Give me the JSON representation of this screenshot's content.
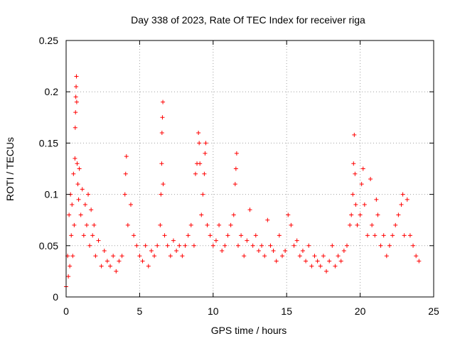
{
  "chart_data": {
    "type": "scatter",
    "title": "Day 338 of 2023, Rate Of TEC Index for receiver riga",
    "xlabel": "GPS time / hours",
    "ylabel": "ROTI / TECUs",
    "xlim": [
      0,
      25
    ],
    "ylim": [
      0,
      0.25
    ],
    "xticks": [
      0,
      5,
      10,
      15,
      20,
      25
    ],
    "yticks": [
      0,
      0.05,
      0.1,
      0.15,
      0.2,
      0.25
    ],
    "xtick_labels": [
      "0",
      "5",
      "10",
      "15",
      "20",
      "25"
    ],
    "ytick_labels": [
      "0",
      "0.05",
      "0.1",
      "0.15",
      "0.2",
      "0.25"
    ],
    "grid": true,
    "marker": "plus",
    "color": "#ff0000",
    "series": [
      {
        "points": [
          [
            0.0,
            0.01
          ],
          [
            0.1,
            0.04
          ],
          [
            0.15,
            0.02
          ],
          [
            0.2,
            0.08
          ],
          [
            0.25,
            0.03
          ],
          [
            0.3,
            0.1
          ],
          [
            0.35,
            0.06
          ],
          [
            0.4,
            0.09
          ],
          [
            0.45,
            0.04
          ],
          [
            0.5,
            0.12
          ],
          [
            0.55,
            0.07
          ],
          [
            0.6,
            0.135
          ],
          [
            0.62,
            0.165
          ],
          [
            0.64,
            0.18
          ],
          [
            0.66,
            0.195
          ],
          [
            0.68,
            0.205
          ],
          [
            0.7,
            0.215
          ],
          [
            0.72,
            0.19
          ],
          [
            0.75,
            0.13
          ],
          [
            0.8,
            0.11
          ],
          [
            0.85,
            0.095
          ],
          [
            0.9,
            0.125
          ],
          [
            1.0,
            0.08
          ],
          [
            1.1,
            0.105
          ],
          [
            1.2,
            0.06
          ],
          [
            1.3,
            0.09
          ],
          [
            1.4,
            0.07
          ],
          [
            1.5,
            0.1
          ],
          [
            1.6,
            0.05
          ],
          [
            1.7,
            0.085
          ],
          [
            1.8,
            0.06
          ],
          [
            1.9,
            0.07
          ],
          [
            2.0,
            0.04
          ],
          [
            2.2,
            0.055
          ],
          [
            2.4,
            0.03
          ],
          [
            2.6,
            0.045
          ],
          [
            2.8,
            0.035
          ],
          [
            3.0,
            0.03
          ],
          [
            3.2,
            0.04
          ],
          [
            3.4,
            0.025
          ],
          [
            3.6,
            0.035
          ],
          [
            3.8,
            0.04
          ],
          [
            4.0,
            0.1
          ],
          [
            4.05,
            0.12
          ],
          [
            4.1,
            0.137
          ],
          [
            4.2,
            0.07
          ],
          [
            4.4,
            0.09
          ],
          [
            4.6,
            0.06
          ],
          [
            4.8,
            0.05
          ],
          [
            5.0,
            0.04
          ],
          [
            5.2,
            0.035
          ],
          [
            5.4,
            0.05
          ],
          [
            5.6,
            0.03
          ],
          [
            5.8,
            0.045
          ],
          [
            6.0,
            0.04
          ],
          [
            6.2,
            0.05
          ],
          [
            6.4,
            0.07
          ],
          [
            6.45,
            0.1
          ],
          [
            6.5,
            0.13
          ],
          [
            6.52,
            0.16
          ],
          [
            6.55,
            0.175
          ],
          [
            6.58,
            0.19
          ],
          [
            6.6,
            0.11
          ],
          [
            6.7,
            0.06
          ],
          [
            6.9,
            0.05
          ],
          [
            7.1,
            0.04
          ],
          [
            7.3,
            0.055
          ],
          [
            7.5,
            0.045
          ],
          [
            7.7,
            0.05
          ],
          [
            7.9,
            0.04
          ],
          [
            8.1,
            0.05
          ],
          [
            8.3,
            0.06
          ],
          [
            8.5,
            0.07
          ],
          [
            8.7,
            0.05
          ],
          [
            8.8,
            0.12
          ],
          [
            8.9,
            0.13
          ],
          [
            9.0,
            0.16
          ],
          [
            9.05,
            0.15
          ],
          [
            9.1,
            0.13
          ],
          [
            9.2,
            0.08
          ],
          [
            9.3,
            0.1
          ],
          [
            9.4,
            0.12
          ],
          [
            9.45,
            0.14
          ],
          [
            9.5,
            0.15
          ],
          [
            9.6,
            0.07
          ],
          [
            9.8,
            0.06
          ],
          [
            10.0,
            0.05
          ],
          [
            10.2,
            0.055
          ],
          [
            10.4,
            0.07
          ],
          [
            10.6,
            0.045
          ],
          [
            10.8,
            0.05
          ],
          [
            11.0,
            0.06
          ],
          [
            11.2,
            0.07
          ],
          [
            11.4,
            0.08
          ],
          [
            11.5,
            0.11
          ],
          [
            11.55,
            0.125
          ],
          [
            11.6,
            0.14
          ],
          [
            11.7,
            0.05
          ],
          [
            11.9,
            0.06
          ],
          [
            12.1,
            0.04
          ],
          [
            12.3,
            0.055
          ],
          [
            12.5,
            0.085
          ],
          [
            12.7,
            0.05
          ],
          [
            12.9,
            0.06
          ],
          [
            13.1,
            0.045
          ],
          [
            13.3,
            0.05
          ],
          [
            13.5,
            0.04
          ],
          [
            13.7,
            0.075
          ],
          [
            13.9,
            0.05
          ],
          [
            14.1,
            0.045
          ],
          [
            14.3,
            0.035
          ],
          [
            14.5,
            0.06
          ],
          [
            14.7,
            0.04
          ],
          [
            14.9,
            0.045
          ],
          [
            15.1,
            0.08
          ],
          [
            15.3,
            0.07
          ],
          [
            15.5,
            0.05
          ],
          [
            15.7,
            0.055
          ],
          [
            15.9,
            0.04
          ],
          [
            16.1,
            0.045
          ],
          [
            16.3,
            0.035
          ],
          [
            16.5,
            0.05
          ],
          [
            16.7,
            0.03
          ],
          [
            16.9,
            0.04
          ],
          [
            17.1,
            0.035
          ],
          [
            17.3,
            0.03
          ],
          [
            17.5,
            0.04
          ],
          [
            17.7,
            0.025
          ],
          [
            17.9,
            0.035
          ],
          [
            18.1,
            0.05
          ],
          [
            18.3,
            0.03
          ],
          [
            18.5,
            0.04
          ],
          [
            18.7,
            0.035
          ],
          [
            18.9,
            0.045
          ],
          [
            19.1,
            0.05
          ],
          [
            19.3,
            0.07
          ],
          [
            19.4,
            0.08
          ],
          [
            19.5,
            0.1
          ],
          [
            19.55,
            0.13
          ],
          [
            19.6,
            0.158
          ],
          [
            19.65,
            0.12
          ],
          [
            19.7,
            0.09
          ],
          [
            19.8,
            0.07
          ],
          [
            20.0,
            0.08
          ],
          [
            20.1,
            0.11
          ],
          [
            20.2,
            0.125
          ],
          [
            20.3,
            0.09
          ],
          [
            20.5,
            0.06
          ],
          [
            20.7,
            0.115
          ],
          [
            20.8,
            0.07
          ],
          [
            21.0,
            0.06
          ],
          [
            21.1,
            0.095
          ],
          [
            21.2,
            0.08
          ],
          [
            21.4,
            0.05
          ],
          [
            21.6,
            0.06
          ],
          [
            21.8,
            0.04
          ],
          [
            22.0,
            0.05
          ],
          [
            22.2,
            0.06
          ],
          [
            22.4,
            0.07
          ],
          [
            22.6,
            0.08
          ],
          [
            22.8,
            0.09
          ],
          [
            22.9,
            0.1
          ],
          [
            23.0,
            0.06
          ],
          [
            23.2,
            0.095
          ],
          [
            23.4,
            0.06
          ],
          [
            23.6,
            0.05
          ],
          [
            23.8,
            0.04
          ],
          [
            24.0,
            0.035
          ]
        ]
      }
    ]
  }
}
